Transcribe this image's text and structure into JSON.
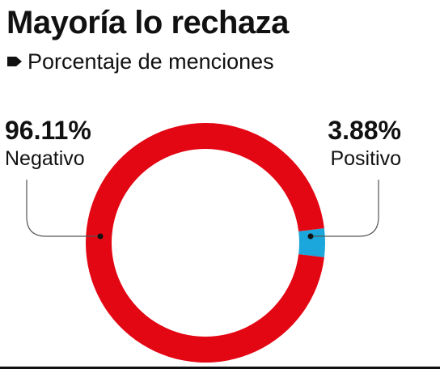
{
  "title": "Mayoría lo rechaza",
  "subtitle": "Porcentaje de menciones",
  "colors": {
    "negativo": "#e30613",
    "positivo": "#1ba6dc",
    "text": "#111111",
    "leader": "#555555"
  },
  "chart_data": {
    "type": "pie",
    "variant": "donut",
    "title": "Mayoría lo rechaza",
    "subtitle": "Porcentaje de menciones",
    "slices": [
      {
        "label": "Negativo",
        "value": 96.11,
        "display": "96.11%",
        "color": "#e30613"
      },
      {
        "label": "Positivo",
        "value": 3.88,
        "display": "3.88%",
        "color": "#1ba6dc"
      }
    ]
  }
}
